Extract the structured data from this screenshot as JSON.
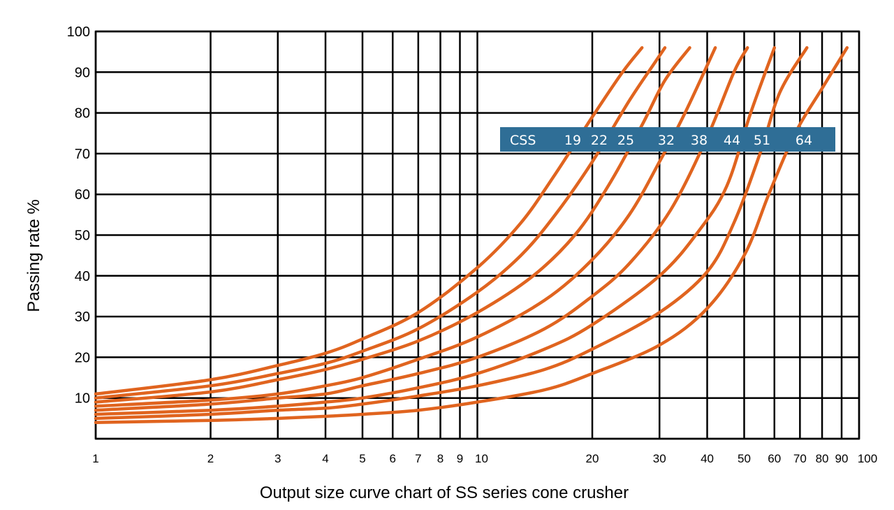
{
  "chart_data": {
    "type": "line",
    "title": "",
    "xlabel": "Output size curve chart of SS series cone crusher",
    "ylabel": "Passing rate %",
    "x_scale": "log",
    "xlim": [
      1,
      100
    ],
    "ylim": [
      0,
      100
    ],
    "grid": true,
    "x_tick_labels": [
      "1",
      "2",
      "3",
      "4",
      "5",
      "6",
      "7",
      "8",
      "9",
      "10",
      "20",
      "30",
      "40",
      "50",
      "60",
      "70",
      "80",
      "90",
      "100"
    ],
    "y_tick_labels": [
      "10",
      "20",
      "30",
      "40",
      "50",
      "60",
      "70",
      "80",
      "90",
      "100"
    ],
    "legend": {
      "title": "CSS",
      "labels": [
        "19",
        "22",
        "25",
        "32",
        "38",
        "44",
        "51",
        "64"
      ],
      "placement": "upper-right (inside plot, y≈72)",
      "background": "#2f6e96"
    },
    "line_color": "#e0641f",
    "series": [
      {
        "name": "19",
        "points": [
          [
            1,
            11
          ],
          [
            2,
            14.5
          ],
          [
            3,
            18
          ],
          [
            4,
            21
          ],
          [
            5,
            24.5
          ],
          [
            7,
            31
          ],
          [
            10,
            42
          ],
          [
            13,
            53
          ],
          [
            16,
            65
          ],
          [
            20,
            79
          ],
          [
            24,
            90
          ],
          [
            27,
            96
          ]
        ]
      },
      {
        "name": "22",
        "points": [
          [
            1,
            10
          ],
          [
            2,
            13
          ],
          [
            3,
            16
          ],
          [
            4,
            18.5
          ],
          [
            5,
            21.5
          ],
          [
            7,
            27
          ],
          [
            10,
            36
          ],
          [
            13,
            45
          ],
          [
            16,
            55
          ],
          [
            20,
            68
          ],
          [
            25,
            83
          ],
          [
            29,
            92
          ],
          [
            31,
            96
          ]
        ]
      },
      {
        "name": "25",
        "points": [
          [
            1,
            9
          ],
          [
            2,
            11.5
          ],
          [
            3,
            14.5
          ],
          [
            4,
            17
          ],
          [
            5,
            19.5
          ],
          [
            7,
            24
          ],
          [
            10,
            31
          ],
          [
            14,
            40
          ],
          [
            18,
            50
          ],
          [
            22,
            62
          ],
          [
            27,
            77
          ],
          [
            31,
            88
          ],
          [
            36,
            96
          ]
        ]
      },
      {
        "name": "32",
        "points": [
          [
            1,
            8
          ],
          [
            2,
            9.5
          ],
          [
            3,
            11
          ],
          [
            4,
            13
          ],
          [
            5,
            15
          ],
          [
            7,
            19.5
          ],
          [
            10,
            25
          ],
          [
            15,
            34
          ],
          [
            20,
            44
          ],
          [
            25,
            55
          ],
          [
            30,
            68
          ],
          [
            35,
            80
          ],
          [
            42,
            96
          ]
        ]
      },
      {
        "name": "38",
        "points": [
          [
            1,
            7
          ],
          [
            2,
            8.5
          ],
          [
            3,
            10
          ],
          [
            4,
            11
          ],
          [
            5,
            13
          ],
          [
            7,
            16
          ],
          [
            10,
            20
          ],
          [
            15,
            27
          ],
          [
            20,
            35
          ],
          [
            25,
            43
          ],
          [
            32,
            56
          ],
          [
            40,
            74
          ],
          [
            47,
            90
          ],
          [
            51,
            96
          ]
        ]
      },
      {
        "name": "44",
        "points": [
          [
            1,
            6
          ],
          [
            2,
            7
          ],
          [
            3,
            8
          ],
          [
            4,
            9
          ],
          [
            5,
            10
          ],
          [
            7,
            12.5
          ],
          [
            10,
            16
          ],
          [
            15,
            22
          ],
          [
            20,
            28
          ],
          [
            30,
            40
          ],
          [
            38,
            51
          ],
          [
            45,
            62
          ],
          [
            52,
            80
          ],
          [
            60,
            96
          ]
        ]
      },
      {
        "name": "51",
        "points": [
          [
            1,
            5
          ],
          [
            2,
            6
          ],
          [
            3,
            7
          ],
          [
            4,
            7.5
          ],
          [
            5,
            8.5
          ],
          [
            7,
            10.5
          ],
          [
            10,
            13
          ],
          [
            15,
            17
          ],
          [
            20,
            22
          ],
          [
            30,
            31
          ],
          [
            40,
            41
          ],
          [
            47,
            53
          ],
          [
            55,
            70
          ],
          [
            62,
            85
          ],
          [
            73,
            96
          ]
        ]
      },
      {
        "name": "64",
        "points": [
          [
            1,
            4
          ],
          [
            2,
            4.5
          ],
          [
            3,
            5
          ],
          [
            4,
            5.5
          ],
          [
            5,
            6
          ],
          [
            7,
            7
          ],
          [
            10,
            9
          ],
          [
            15,
            12
          ],
          [
            20,
            16
          ],
          [
            30,
            23
          ],
          [
            40,
            32
          ],
          [
            50,
            45
          ],
          [
            58,
            60
          ],
          [
            68,
            75
          ],
          [
            80,
            86
          ],
          [
            93,
            96
          ]
        ]
      }
    ]
  }
}
